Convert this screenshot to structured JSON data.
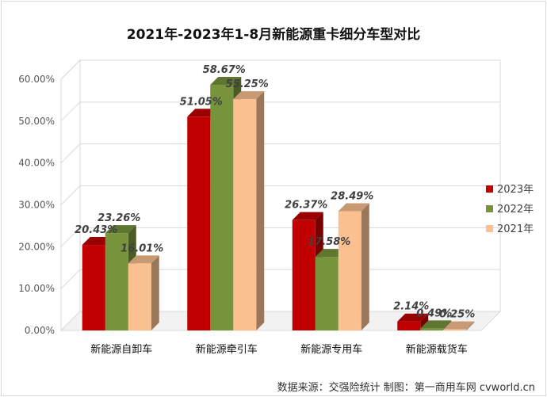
{
  "chart_data": {
    "type": "bar",
    "title": "2021年-2023年1-8月新能源重卡细分车型对比",
    "categories": [
      "新能源自卸车",
      "新能源牵引车",
      "新能源专用车",
      "新能源载货车"
    ],
    "series": [
      {
        "name": "2023年",
        "values": [
          20.43,
          51.05,
          26.37,
          2.14
        ],
        "color": "#c00000",
        "labels": [
          "20.43%",
          "51.05%",
          "26.37%",
          "2.14%"
        ]
      },
      {
        "name": "2022年",
        "values": [
          23.26,
          58.67,
          17.58,
          0.49
        ],
        "color": "#77933c",
        "labels": [
          "23.26%",
          "58.67%",
          "17.58%",
          "0.49%"
        ]
      },
      {
        "name": "2021年",
        "values": [
          16.01,
          55.25,
          28.49,
          0.25
        ],
        "color": "#fac090",
        "labels": [
          "16.01%",
          "55.25%",
          "28.49%",
          "0.25%"
        ]
      }
    ],
    "ylim": [
      0,
      60
    ],
    "yticks": [
      0,
      10,
      20,
      30,
      40,
      50,
      60
    ],
    "ytick_labels": [
      "0.00%",
      "10.00%",
      "20.00%",
      "30.00%",
      "40.00%",
      "50.00%",
      "60.00%"
    ],
    "legend_position": "right",
    "grid": true,
    "style": "3d-clustered-bar"
  },
  "source_note": "数据来源：交强险统计  制图：第一商用车网 cvworld.cn"
}
